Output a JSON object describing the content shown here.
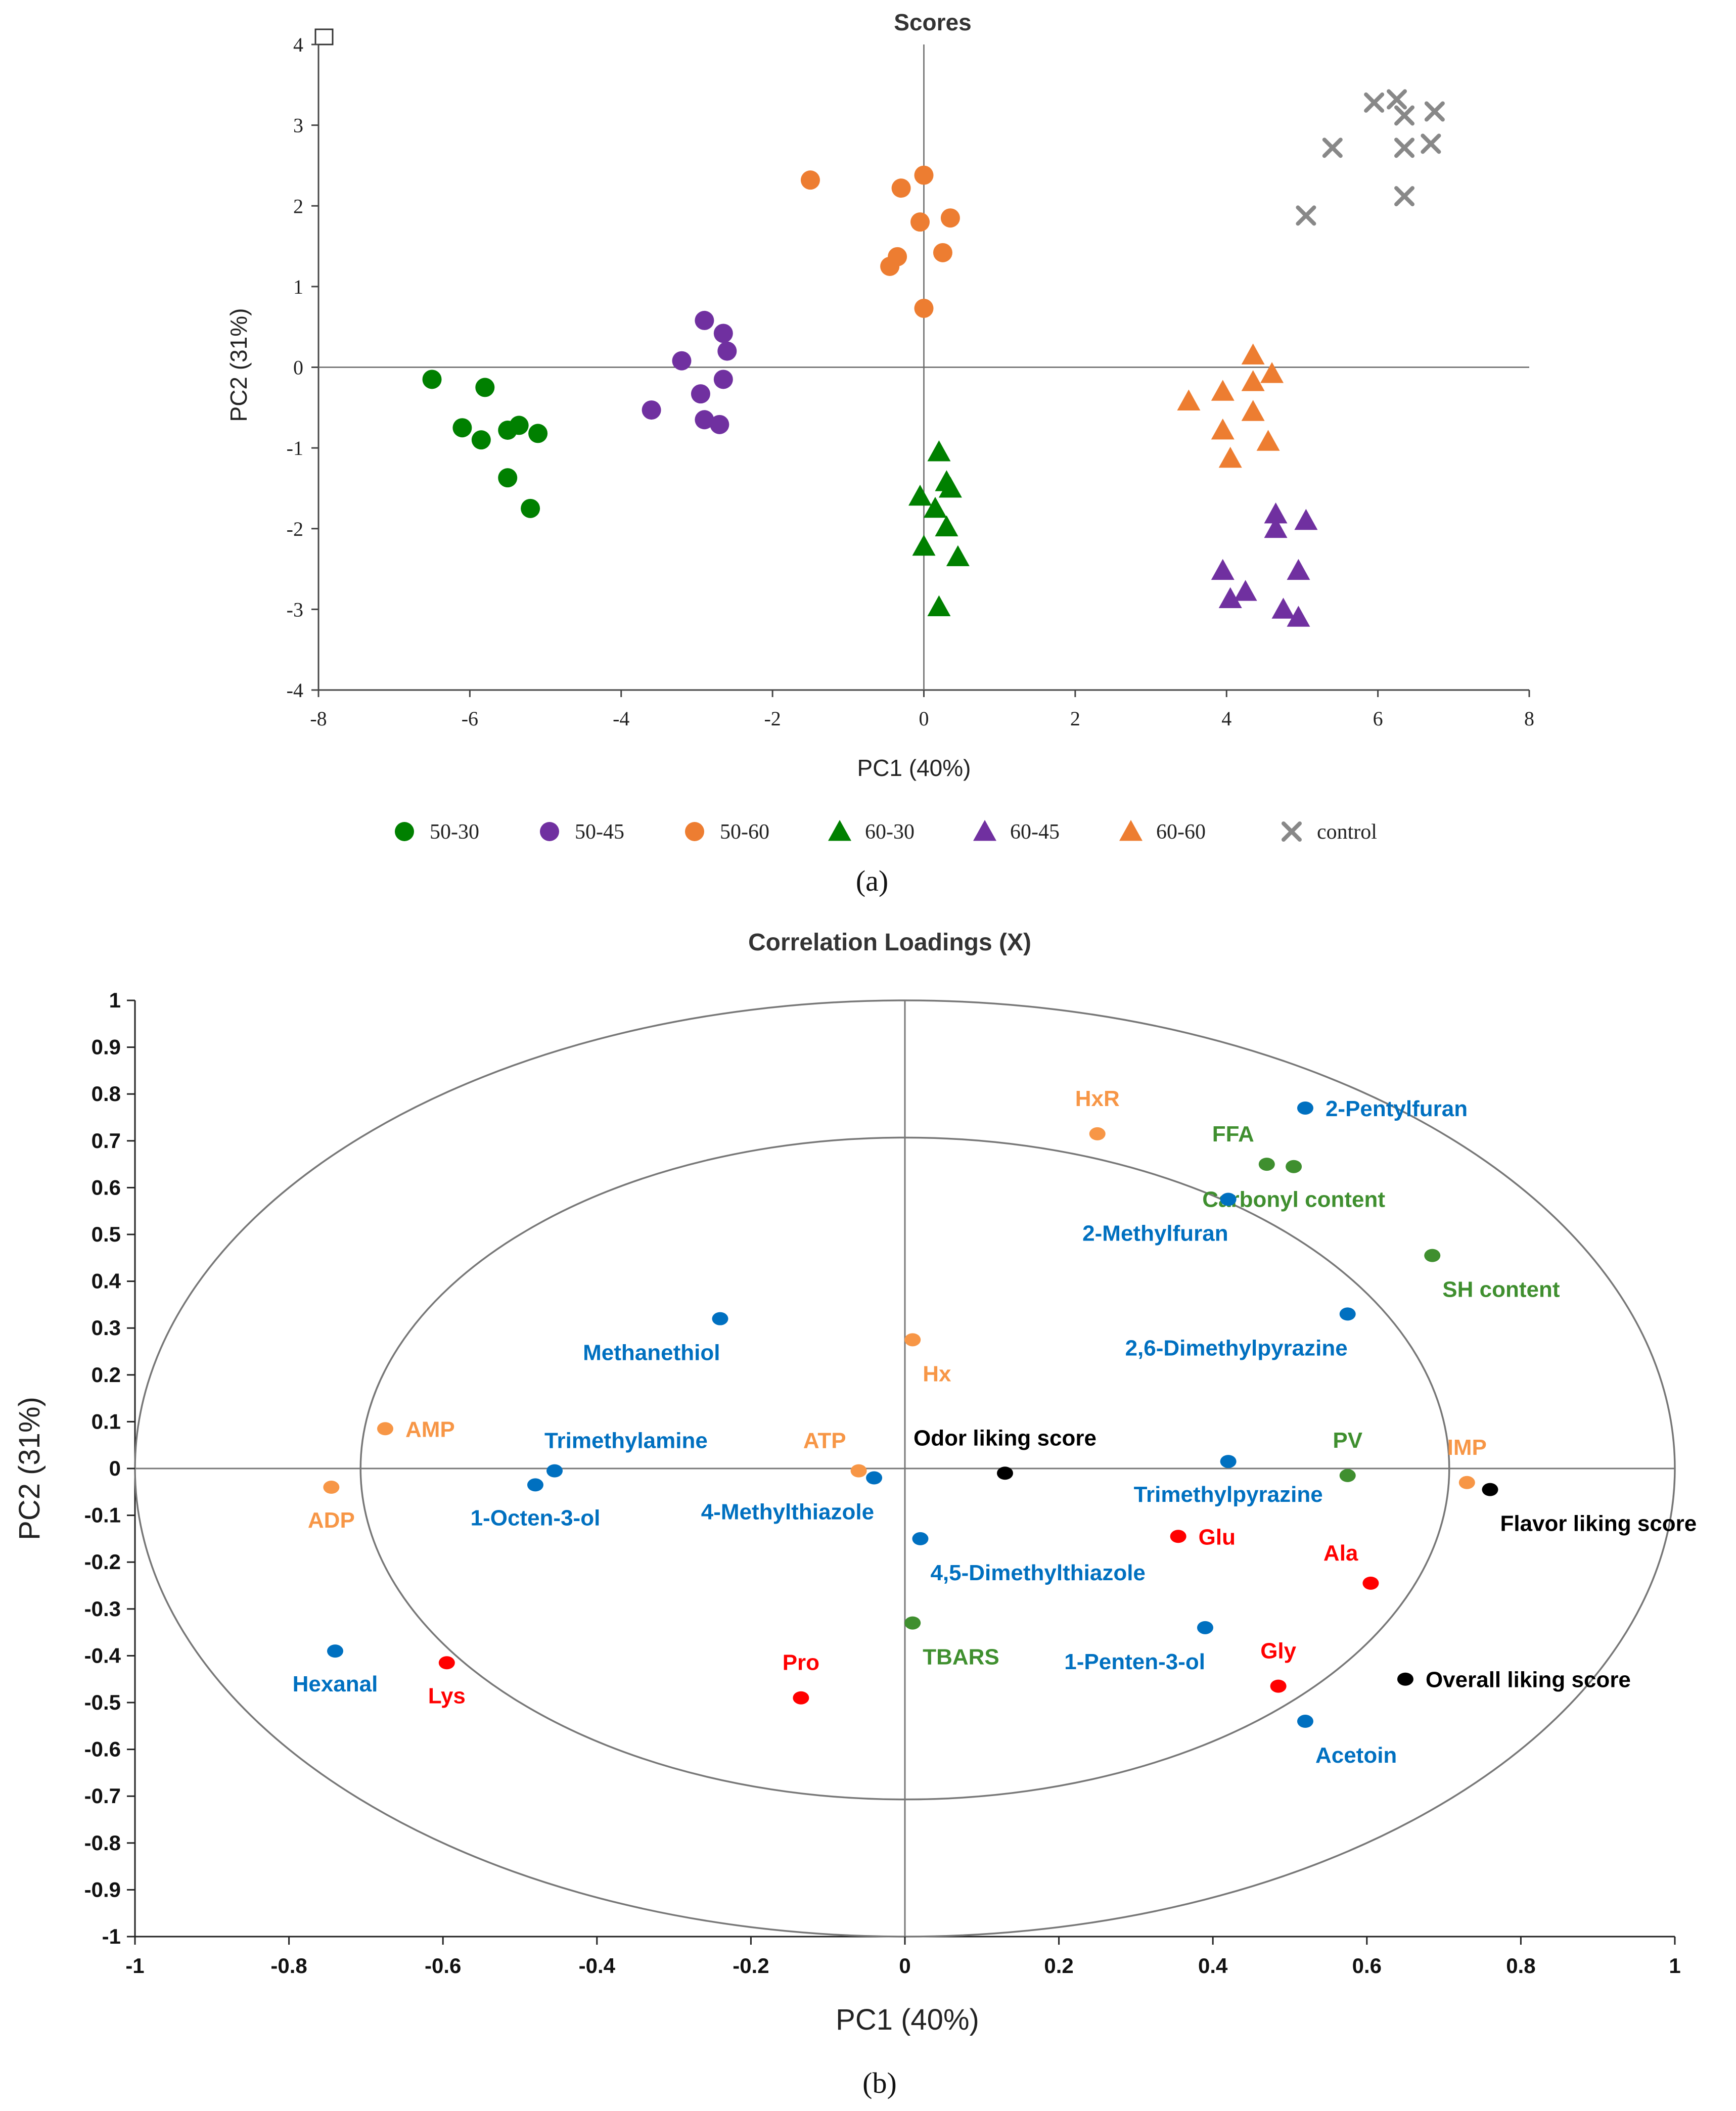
{
  "colors": {
    "green": "#008000",
    "purple": "#7030A0",
    "orange": "#ED7D31",
    "gray": "#888888",
    "blue": "#0070C0",
    "lorange": "#F79646",
    "dgreen": "#3F8F2F",
    "red": "#FF0000",
    "black": "#000000"
  },
  "chart_data": [
    {
      "type": "scatter",
      "title": "Scores",
      "xlabel": "PC1 (40%)",
      "ylabel": "PC2 (31%)",
      "xlim": [
        -8,
        8
      ],
      "ylim": [
        -4,
        4
      ],
      "xticks": [
        "-8",
        "-6",
        "-4",
        "-2",
        "0",
        "2",
        "4",
        "6",
        "8"
      ],
      "yticks": [
        "4",
        "3",
        "2",
        "1",
        "0",
        "-1",
        "-2",
        "-3",
        "-4"
      ],
      "caption": "(a)",
      "legend_position": "bottom",
      "series": [
        {
          "name": "50-30",
          "marker": "circle",
          "color": "green",
          "points": [
            [
              -6.5,
              -0.15
            ],
            [
              -6.1,
              -0.75
            ],
            [
              -5.85,
              -0.9
            ],
            [
              -5.8,
              -0.25
            ],
            [
              -5.5,
              -0.78
            ],
            [
              -5.35,
              -0.72
            ],
            [
              -5.1,
              -0.82
            ],
            [
              -5.5,
              -1.37
            ],
            [
              -5.2,
              -1.75
            ]
          ]
        },
        {
          "name": "50-45",
          "marker": "circle",
          "color": "purple",
          "points": [
            [
              -3.6,
              -0.53
            ],
            [
              -3.2,
              0.08
            ],
            [
              -2.9,
              0.58
            ],
            [
              -2.95,
              -0.33
            ],
            [
              -2.9,
              -0.65
            ],
            [
              -2.65,
              0.42
            ],
            [
              -2.6,
              0.2
            ],
            [
              -2.65,
              -0.15
            ],
            [
              -2.7,
              -0.71
            ]
          ]
        },
        {
          "name": "50-60",
          "marker": "circle",
          "color": "orange",
          "points": [
            [
              -1.5,
              2.32
            ],
            [
              -0.3,
              2.22
            ],
            [
              0.0,
              2.38
            ],
            [
              -0.05,
              1.8
            ],
            [
              0.35,
              1.85
            ],
            [
              0.25,
              1.42
            ],
            [
              -0.35,
              1.37
            ],
            [
              -0.45,
              1.25
            ],
            [
              0.0,
              0.73
            ]
          ]
        },
        {
          "name": "60-30",
          "marker": "triangle",
          "color": "green",
          "points": [
            [
              0.2,
              -1.05
            ],
            [
              0.3,
              -1.42
            ],
            [
              0.35,
              -1.5
            ],
            [
              0.15,
              -1.75
            ],
            [
              -0.05,
              -1.6
            ],
            [
              0.3,
              -1.98
            ],
            [
              0.0,
              -2.22
            ],
            [
              0.45,
              -2.35
            ],
            [
              0.2,
              -2.97
            ]
          ]
        },
        {
          "name": "60-45",
          "marker": "triangle",
          "color": "purple",
          "points": [
            [
              4.65,
              -1.82
            ],
            [
              5.05,
              -1.9
            ],
            [
              4.65,
              -2.0
            ],
            [
              3.95,
              -2.52
            ],
            [
              4.25,
              -2.78
            ],
            [
              4.05,
              -2.87
            ],
            [
              4.95,
              -2.52
            ],
            [
              4.75,
              -3.0
            ],
            [
              4.95,
              -3.1
            ]
          ]
        },
        {
          "name": "60-60",
          "marker": "triangle",
          "color": "orange",
          "points": [
            [
              4.35,
              0.15
            ],
            [
              4.6,
              -0.08
            ],
            [
              4.35,
              -0.18
            ],
            [
              3.5,
              -0.42
            ],
            [
              3.95,
              -0.3
            ],
            [
              4.35,
              -0.55
            ],
            [
              3.95,
              -0.78
            ],
            [
              4.55,
              -0.92
            ],
            [
              4.05,
              -1.13
            ]
          ]
        },
        {
          "name": "control",
          "marker": "x",
          "color": "gray",
          "points": [
            [
              5.95,
              3.28
            ],
            [
              6.25,
              3.32
            ],
            [
              6.35,
              3.12
            ],
            [
              6.75,
              3.17
            ],
            [
              5.4,
              2.72
            ],
            [
              6.35,
              2.72
            ],
            [
              6.7,
              2.77
            ],
            [
              6.35,
              2.12
            ],
            [
              5.05,
              1.88
            ]
          ]
        }
      ]
    },
    {
      "type": "scatter",
      "title": "Correlation Loadings (X)",
      "xlabel": "PC1 (40%)",
      "ylabel": "PC2 (31%)",
      "xlim": [
        -1,
        1
      ],
      "ylim": [
        -1,
        1
      ],
      "xticks": [
        "-1",
        "-0.8",
        "-0.6",
        "-0.4",
        "-0.2",
        "0",
        "0.2",
        "0.4",
        "0.6",
        "0.8",
        "1"
      ],
      "yticks": [
        "1",
        "0.9",
        "0.8",
        "0.7",
        "0.6",
        "0.5",
        "0.4",
        "0.3",
        "0.2",
        "0.1",
        "0",
        "-0.1",
        "-0.2",
        "-0.3",
        "-0.4",
        "-0.5",
        "-0.6",
        "-0.7",
        "-0.8",
        "-0.9",
        "-1"
      ],
      "circles": [
        1.0,
        0.707
      ],
      "caption": "(b)",
      "points": [
        {
          "label": "HxR",
          "x": 0.25,
          "y": 0.715,
          "color": "lorange",
          "label_pos": "above"
        },
        {
          "label": "2-Pentylfuran",
          "x": 0.52,
          "y": 0.77,
          "color": "blue",
          "label_pos": "right"
        },
        {
          "label": "FFA",
          "x": 0.47,
          "y": 0.65,
          "color": "dgreen",
          "label_pos": "above-left"
        },
        {
          "label": "Carbonyl content",
          "x": 0.505,
          "y": 0.645,
          "color": "dgreen",
          "label_pos": "below"
        },
        {
          "label": "2-Methylfuran",
          "x": 0.42,
          "y": 0.575,
          "color": "blue",
          "label_pos": "below-left"
        },
        {
          "label": "SH content",
          "x": 0.685,
          "y": 0.455,
          "color": "dgreen",
          "label_pos": "below-right"
        },
        {
          "label": "Methanethiol",
          "x": -0.24,
          "y": 0.32,
          "color": "blue",
          "label_pos": "below-left"
        },
        {
          "label": "2,6-Dimethylpyrazine",
          "x": 0.575,
          "y": 0.33,
          "color": "blue",
          "label_pos": "below-left"
        },
        {
          "label": "Hx",
          "x": 0.01,
          "y": 0.275,
          "color": "lorange",
          "label_pos": "below-right"
        },
        {
          "label": "AMP",
          "x": -0.675,
          "y": 0.085,
          "color": "lorange",
          "label_pos": "right"
        },
        {
          "label": "Trimethylamine",
          "x": -0.455,
          "y": -0.005,
          "color": "blue",
          "label_pos": "above-right"
        },
        {
          "label": "1-Octen-3-ol",
          "x": -0.48,
          "y": -0.035,
          "color": "blue",
          "label_pos": "below"
        },
        {
          "label": "ATP",
          "x": -0.06,
          "y": -0.005,
          "color": "lorange",
          "label_pos": "above-left"
        },
        {
          "label": "4-Methylthiazole",
          "x": -0.04,
          "y": -0.02,
          "color": "blue",
          "label_pos": "below-left"
        },
        {
          "label": "Odor liking score",
          "x": 0.13,
          "y": -0.01,
          "color": "black",
          "label_pos": "above"
        },
        {
          "label": "Trimethylpyrazine",
          "x": 0.42,
          "y": 0.015,
          "color": "blue",
          "label_pos": "below"
        },
        {
          "label": "PV",
          "x": 0.575,
          "y": -0.015,
          "color": "dgreen",
          "label_pos": "above"
        },
        {
          "label": "IMP",
          "x": 0.73,
          "y": -0.03,
          "color": "lorange",
          "label_pos": "above"
        },
        {
          "label": "Flavor liking score",
          "x": 0.76,
          "y": -0.045,
          "color": "black",
          "label_pos": "below-right"
        },
        {
          "label": "ADP",
          "x": -0.745,
          "y": -0.04,
          "color": "lorange",
          "label_pos": "below"
        },
        {
          "label": "4,5-Dimethylthiazole",
          "x": 0.02,
          "y": -0.15,
          "color": "blue",
          "label_pos": "below-right"
        },
        {
          "label": "Glu",
          "x": 0.355,
          "y": -0.145,
          "color": "red",
          "label_pos": "right"
        },
        {
          "label": "Ala",
          "x": 0.605,
          "y": -0.245,
          "color": "red",
          "label_pos": "above-left"
        },
        {
          "label": "TBARS",
          "x": 0.01,
          "y": -0.33,
          "color": "dgreen",
          "label_pos": "below-right"
        },
        {
          "label": "1-Penten-3-ol",
          "x": 0.39,
          "y": -0.34,
          "color": "blue",
          "label_pos": "below-left"
        },
        {
          "label": "Hexanal",
          "x": -0.74,
          "y": -0.39,
          "color": "blue",
          "label_pos": "below"
        },
        {
          "label": "Lys",
          "x": -0.595,
          "y": -0.415,
          "color": "red",
          "label_pos": "below"
        },
        {
          "label": "Pro",
          "x": -0.135,
          "y": -0.49,
          "color": "red",
          "label_pos": "above"
        },
        {
          "label": "Gly",
          "x": 0.485,
          "y": -0.465,
          "color": "red",
          "label_pos": "above"
        },
        {
          "label": "Overall liking score",
          "x": 0.65,
          "y": -0.45,
          "color": "black",
          "label_pos": "right"
        },
        {
          "label": "Acetoin",
          "x": 0.52,
          "y": -0.54,
          "color": "blue",
          "label_pos": "below-right"
        }
      ]
    }
  ]
}
